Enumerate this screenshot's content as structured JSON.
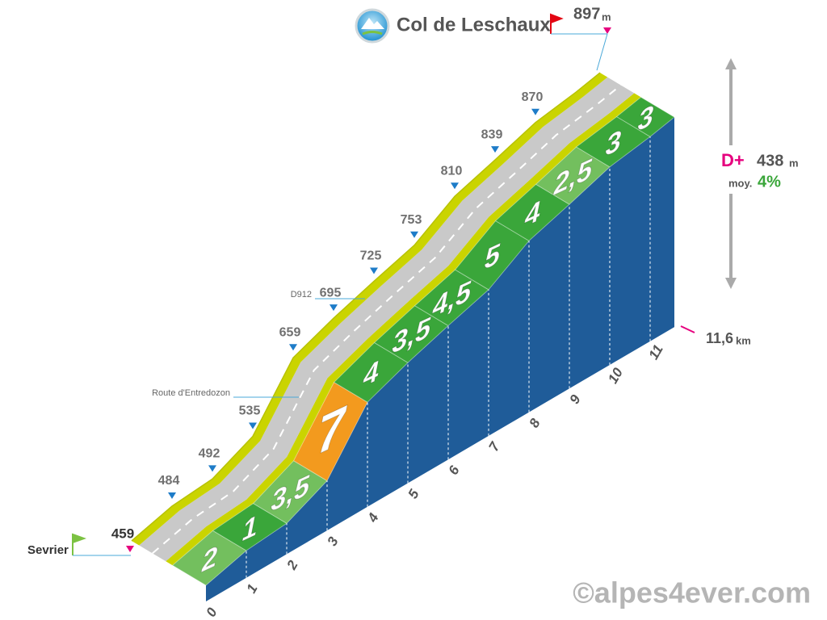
{
  "chart_data": {
    "type": "climb-profile",
    "title": "Col de Leschaux",
    "summit_unit": "m",
    "start_name": "Sevrier",
    "altitudes": {
      "x": [
        0,
        1,
        2,
        3,
        4,
        5,
        6,
        7,
        8,
        9,
        10,
        11,
        11.6
      ],
      "values": [
        459,
        484,
        492,
        535,
        659,
        695,
        725,
        753,
        810,
        839,
        870,
        885,
        897
      ],
      "printed": [
        false,
        true,
        true,
        true,
        true,
        true,
        true,
        true,
        true,
        true,
        true,
        false,
        false
      ]
    },
    "gradients": {
      "values": [
        2,
        1,
        3.5,
        7,
        4,
        3.5,
        4.5,
        5,
        4,
        2.5,
        3,
        3
      ],
      "value_labels": [
        "2",
        "1",
        "3,5",
        "7",
        "4",
        "3,5",
        "4,5",
        "5",
        "4",
        "2,5",
        "3",
        "3"
      ],
      "colors": [
        "#73bf5e",
        "#3aa63a",
        "#73bf5e",
        "#f39a1e",
        "#3aa63a",
        "#3aa63a",
        "#3aa63a",
        "#3aa63a",
        "#3aa63a",
        "#73bf5e",
        "#3aa63a",
        "#3aa63a"
      ]
    },
    "xticks": [
      0,
      1,
      2,
      3,
      4,
      5,
      6,
      7,
      8,
      9,
      10,
      11
    ],
    "distance": {
      "value": 11.6,
      "label": "11,6"
    },
    "distance_unit": "km",
    "gain_label": "D+",
    "gain": 438,
    "gain_unit": "m",
    "average_label": "moy.",
    "average": {
      "value": 4,
      "label": "4%"
    },
    "roads": [
      "D912",
      "Route d'Entredozon"
    ],
    "footer": "©alpes4ever.com"
  }
}
